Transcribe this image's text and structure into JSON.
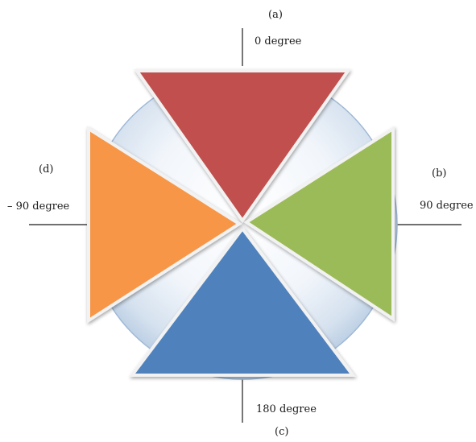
{
  "labels": {
    "a": "(a)",
    "b": "(b)",
    "c": "(c)",
    "d": "(d)"
  },
  "angles": {
    "top": "0 degree",
    "right": "90 degree",
    "bottom": "180 degree",
    "left": "– 90 degree"
  },
  "colors": {
    "top_triangle": "#c0504d",
    "right_triangle": "#9bbb59",
    "bottom_triangle": "#4f81bd",
    "left_triangle": "#f79646",
    "circle_edge": "#a6bfdc",
    "circle_fill": "#dde7f2"
  }
}
